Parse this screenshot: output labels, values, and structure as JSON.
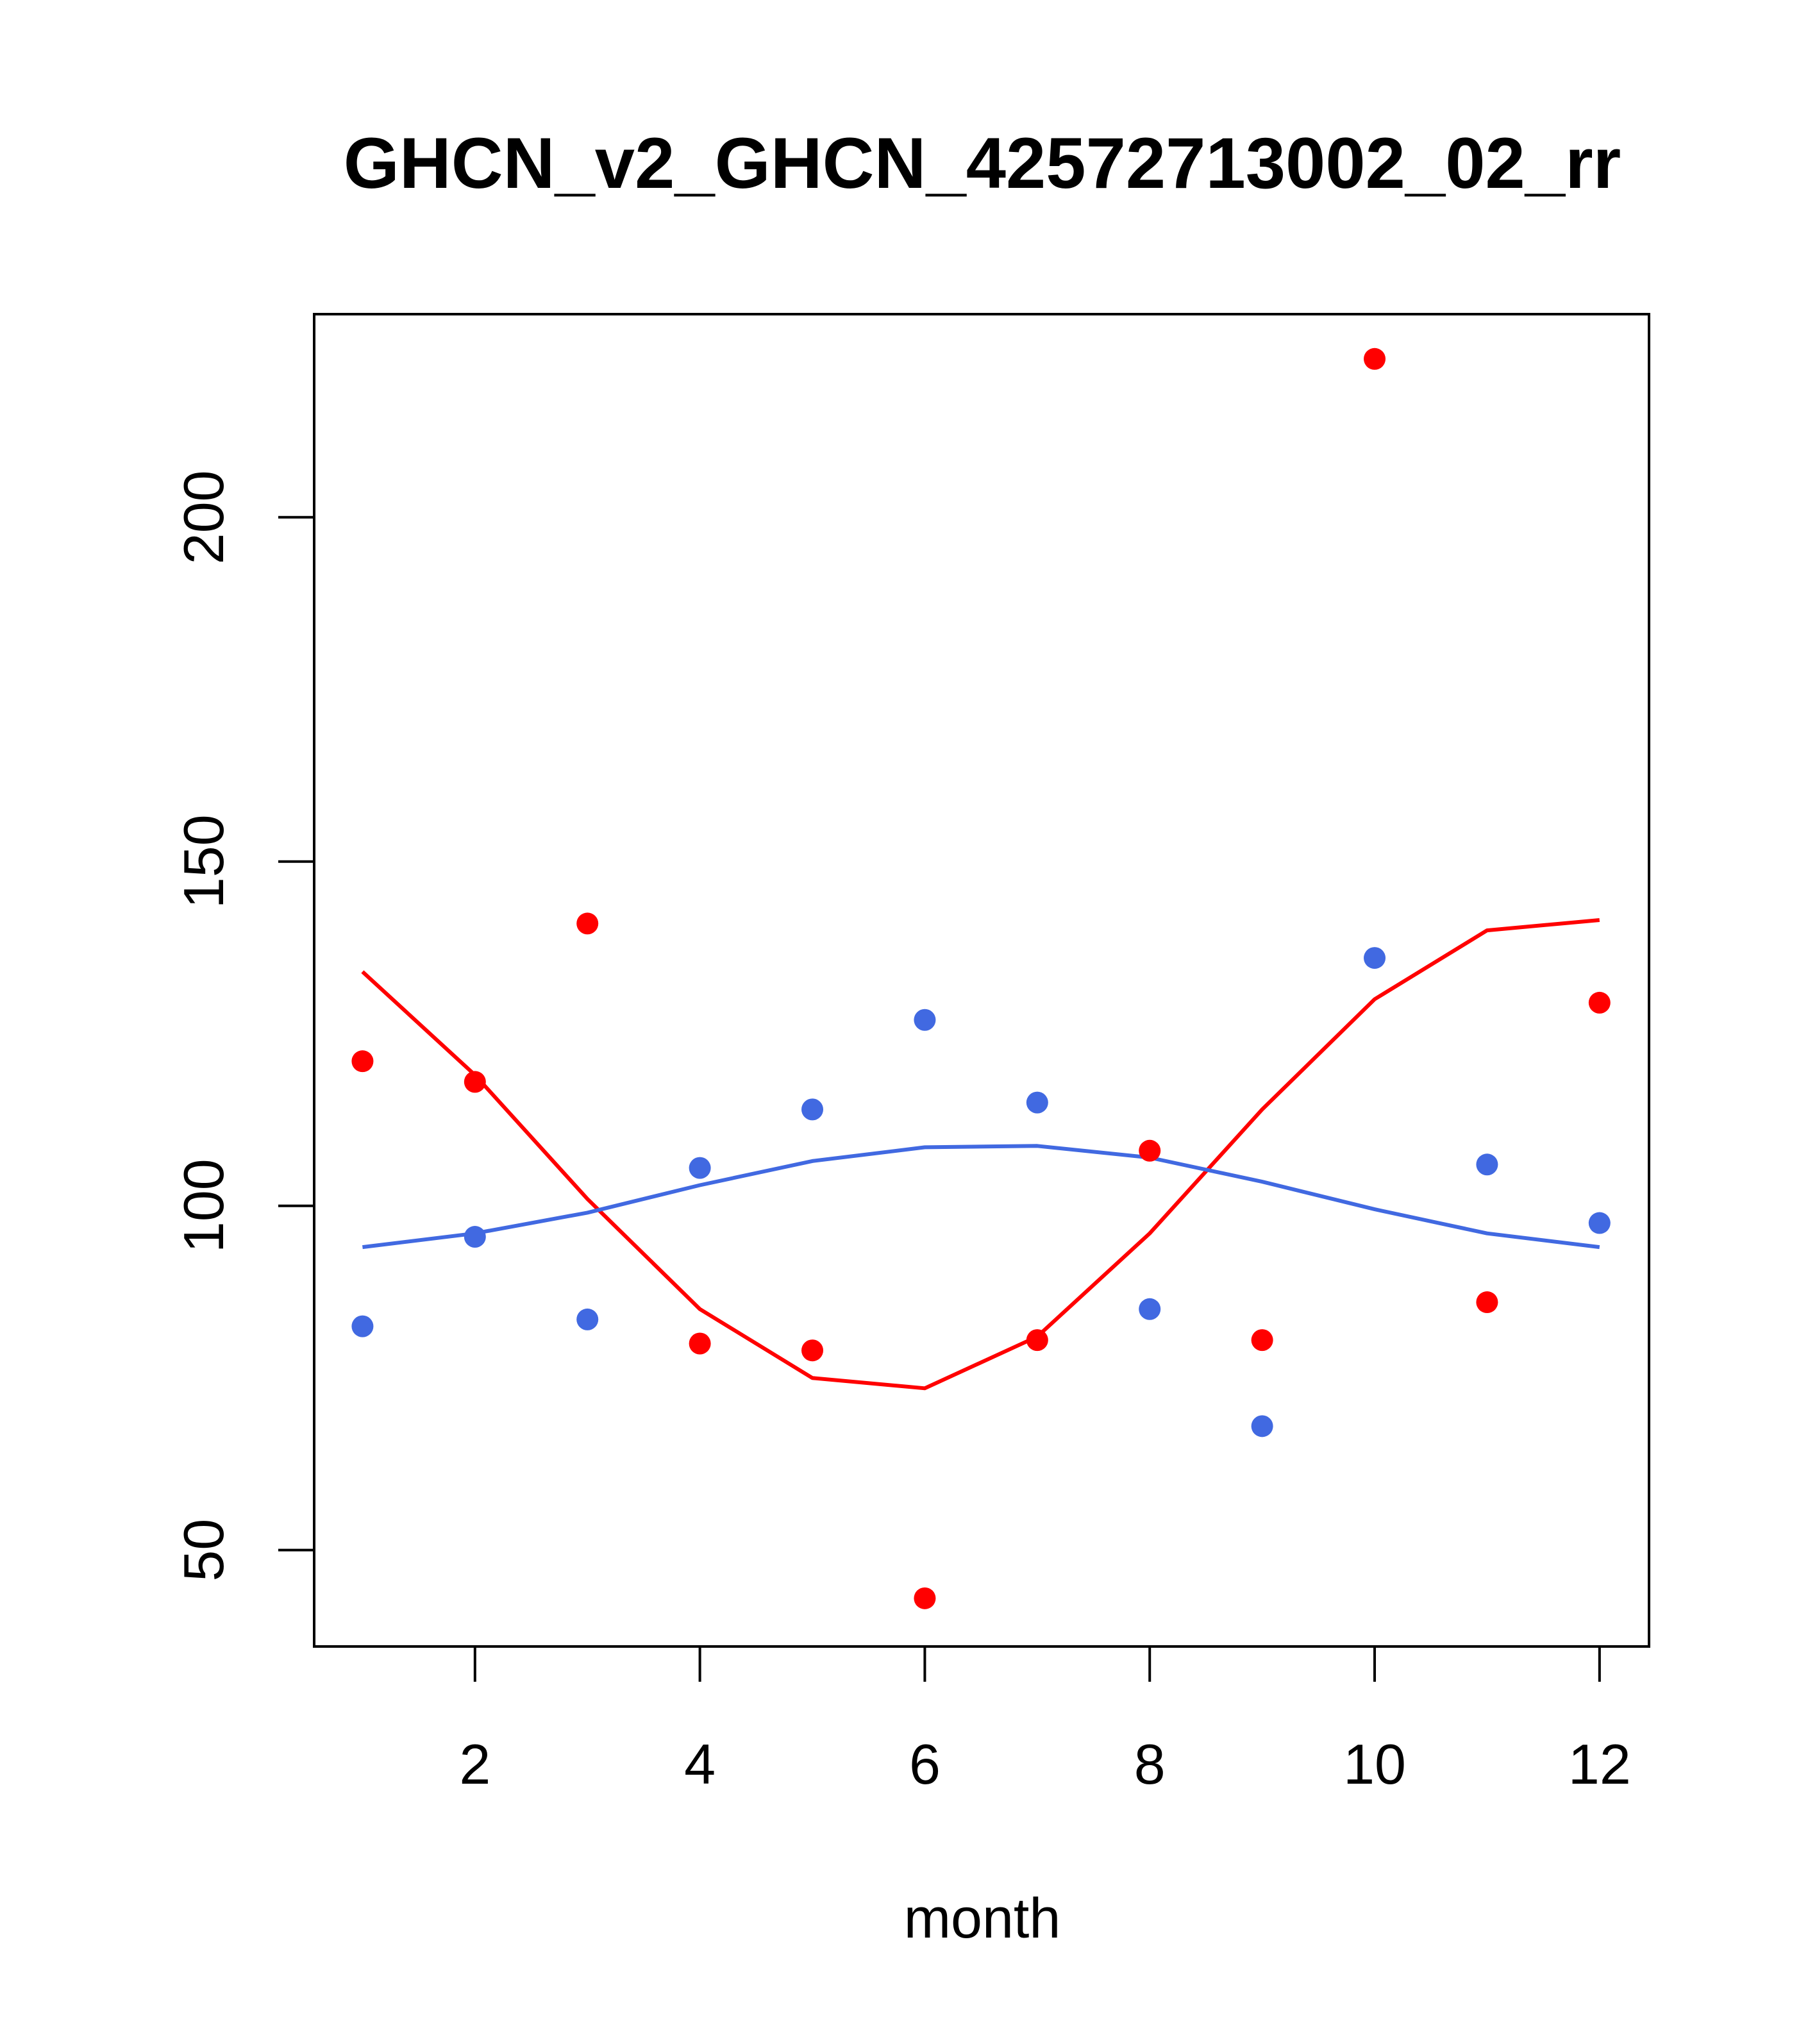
{
  "chart_data": {
    "type": "scatter",
    "title": "GHCN_v2_GHCN_42572713002_02_rr",
    "xlabel": "month",
    "ylabel": "",
    "xlim": [
      0.57,
      12.44
    ],
    "ylim": [
      36,
      229.5
    ],
    "x_ticks": [
      2,
      4,
      6,
      8,
      10,
      12
    ],
    "x_tick_labels": [
      "2",
      "4",
      "6",
      "8",
      "10",
      "12"
    ],
    "y_ticks": [
      50,
      100,
      150,
      200
    ],
    "y_tick_labels": [
      "50",
      "100",
      "150",
      "200"
    ],
    "grid": false,
    "legend": "none",
    "series": [
      {
        "color": "#ff0000",
        "x": [
          1,
          2,
          3,
          4,
          5,
          6,
          7,
          8,
          9,
          10,
          11,
          12
        ],
        "points": [
          121,
          118,
          141,
          80,
          79,
          43,
          80.5,
          108,
          80.5,
          223,
          86,
          129.5
        ],
        "line": [
          134,
          119,
          101,
          85,
          75,
          73.5,
          81,
          96,
          114,
          130,
          140,
          141.5
        ]
      },
      {
        "color": "#4169e1",
        "x": [
          1,
          2,
          3,
          4,
          5,
          6,
          7,
          8,
          9,
          10,
          11,
          12
        ],
        "points": [
          82.5,
          95.5,
          83.5,
          105.5,
          114,
          127,
          115,
          85,
          68,
          136,
          106,
          97.5
        ],
        "line": [
          94,
          96,
          99,
          103,
          106.5,
          108.5,
          108.7,
          107,
          103.5,
          99.5,
          96,
          94
        ]
      }
    ]
  }
}
